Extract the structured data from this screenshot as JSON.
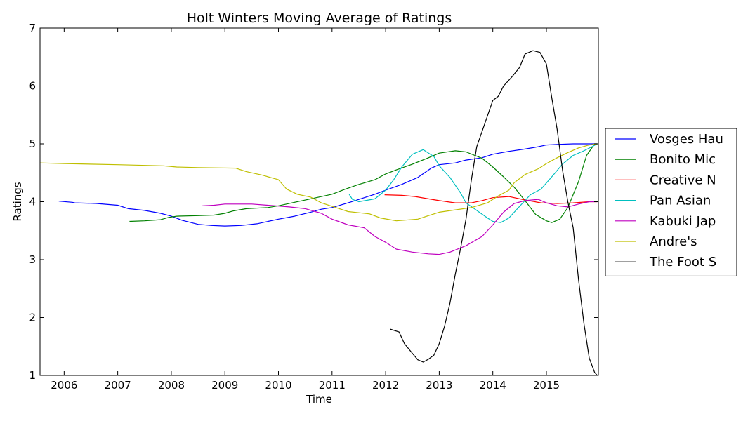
{
  "chart_data": {
    "type": "line",
    "title": "Holt Winters Moving Average of Ratings",
    "xlabel": "Time",
    "ylabel": "Ratings",
    "xlim": [
      2005.55,
      2015.97
    ],
    "ylim": [
      1,
      7
    ],
    "x_ticks": [
      2006,
      2007,
      2008,
      2009,
      2010,
      2011,
      2012,
      2013,
      2014,
      2015
    ],
    "x_tick_labels": [
      "2006",
      "2007",
      "2008",
      "2009",
      "2010",
      "2011",
      "2012",
      "2013",
      "2014",
      "2015"
    ],
    "y_ticks": [
      1,
      2,
      3,
      4,
      5,
      6,
      7
    ],
    "y_tick_labels": [
      "1",
      "2",
      "3",
      "4",
      "5",
      "6",
      "7"
    ],
    "grid": false,
    "legend_position": "right",
    "series": [
      {
        "name": "Vosges Hau",
        "color": "#0000ff",
        "points": [
          [
            2005.9,
            4.01
          ],
          [
            2006.15,
            3.99
          ],
          [
            2006.2,
            3.98
          ],
          [
            2006.6,
            3.97
          ],
          [
            2007.0,
            3.94
          ],
          [
            2007.2,
            3.88
          ],
          [
            2007.5,
            3.85
          ],
          [
            2007.8,
            3.8
          ],
          [
            2008.0,
            3.75
          ],
          [
            2008.2,
            3.68
          ],
          [
            2008.5,
            3.61
          ],
          [
            2008.75,
            3.59
          ],
          [
            2009.0,
            3.58
          ],
          [
            2009.3,
            3.59
          ],
          [
            2009.6,
            3.62
          ],
          [
            2010.0,
            3.7
          ],
          [
            2010.3,
            3.75
          ],
          [
            2010.6,
            3.82
          ],
          [
            2010.8,
            3.87
          ],
          [
            2011.0,
            3.9
          ],
          [
            2011.3,
            3.98
          ],
          [
            2011.5,
            4.04
          ],
          [
            2011.8,
            4.13
          ],
          [
            2012.0,
            4.2
          ],
          [
            2012.3,
            4.3
          ],
          [
            2012.6,
            4.42
          ],
          [
            2012.85,
            4.58
          ],
          [
            2013.0,
            4.64
          ],
          [
            2013.3,
            4.67
          ],
          [
            2013.5,
            4.72
          ],
          [
            2013.8,
            4.76
          ],
          [
            2014.0,
            4.82
          ],
          [
            2014.3,
            4.87
          ],
          [
            2014.6,
            4.91
          ],
          [
            2014.85,
            4.95
          ],
          [
            2015.0,
            4.98
          ],
          [
            2015.2,
            4.99
          ],
          [
            2015.5,
            5.0
          ],
          [
            2015.95,
            5.0
          ]
        ]
      },
      {
        "name": "Bonito Mic",
        "color": "#008000",
        "points": [
          [
            2007.22,
            3.66
          ],
          [
            2007.5,
            3.67
          ],
          [
            2007.8,
            3.69
          ],
          [
            2007.95,
            3.73
          ],
          [
            2008.1,
            3.75
          ],
          [
            2008.5,
            3.76
          ],
          [
            2008.8,
            3.77
          ],
          [
            2009.0,
            3.8
          ],
          [
            2009.15,
            3.84
          ],
          [
            2009.4,
            3.88
          ],
          [
            2009.8,
            3.9
          ],
          [
            2010.0,
            3.93
          ],
          [
            2010.3,
            3.99
          ],
          [
            2010.6,
            4.05
          ],
          [
            2011.0,
            4.13
          ],
          [
            2011.25,
            4.22
          ],
          [
            2011.5,
            4.3
          ],
          [
            2011.8,
            4.38
          ],
          [
            2012.0,
            4.48
          ],
          [
            2012.2,
            4.55
          ],
          [
            2012.5,
            4.65
          ],
          [
            2012.8,
            4.76
          ],
          [
            2013.0,
            4.84
          ],
          [
            2013.3,
            4.88
          ],
          [
            2013.5,
            4.86
          ],
          [
            2013.8,
            4.75
          ],
          [
            2014.0,
            4.6
          ],
          [
            2014.2,
            4.43
          ],
          [
            2014.4,
            4.25
          ],
          [
            2014.6,
            4.02
          ],
          [
            2014.8,
            3.78
          ],
          [
            2015.0,
            3.67
          ],
          [
            2015.1,
            3.64
          ],
          [
            2015.25,
            3.7
          ],
          [
            2015.4,
            3.9
          ],
          [
            2015.6,
            4.35
          ],
          [
            2015.75,
            4.8
          ],
          [
            2015.9,
            5.0
          ],
          [
            2015.95,
            5.0
          ]
        ]
      },
      {
        "name": "Creative N",
        "color": "#ff0000",
        "points": [
          [
            2011.98,
            4.12
          ],
          [
            2012.3,
            4.11
          ],
          [
            2012.55,
            4.09
          ],
          [
            2012.8,
            4.05
          ],
          [
            2013.0,
            4.02
          ],
          [
            2013.3,
            3.98
          ],
          [
            2013.6,
            3.98
          ],
          [
            2013.8,
            4.02
          ],
          [
            2014.0,
            4.07
          ],
          [
            2014.3,
            4.09
          ],
          [
            2014.6,
            4.03
          ],
          [
            2014.9,
            3.98
          ],
          [
            2015.2,
            3.97
          ],
          [
            2015.5,
            3.98
          ],
          [
            2015.8,
            4.0
          ],
          [
            2015.95,
            4.0
          ]
        ]
      },
      {
        "name": "Pan Asian",
        "color": "#00bfbf",
        "points": [
          [
            2011.32,
            4.13
          ],
          [
            2011.38,
            4.04
          ],
          [
            2011.5,
            4.0
          ],
          [
            2011.8,
            4.05
          ],
          [
            2012.0,
            4.2
          ],
          [
            2012.15,
            4.38
          ],
          [
            2012.3,
            4.6
          ],
          [
            2012.5,
            4.82
          ],
          [
            2012.7,
            4.9
          ],
          [
            2012.9,
            4.78
          ],
          [
            2013.0,
            4.62
          ],
          [
            2013.2,
            4.42
          ],
          [
            2013.4,
            4.15
          ],
          [
            2013.5,
            3.98
          ],
          [
            2013.7,
            3.85
          ],
          [
            2013.9,
            3.72
          ],
          [
            2014.0,
            3.66
          ],
          [
            2014.15,
            3.64
          ],
          [
            2014.3,
            3.72
          ],
          [
            2014.5,
            3.92
          ],
          [
            2014.7,
            4.12
          ],
          [
            2014.9,
            4.22
          ],
          [
            2015.1,
            4.43
          ],
          [
            2015.3,
            4.65
          ],
          [
            2015.5,
            4.8
          ],
          [
            2015.7,
            4.88
          ],
          [
            2015.85,
            4.95
          ],
          [
            2015.95,
            5.0
          ]
        ]
      },
      {
        "name": "Kabuki Jap",
        "color": "#bf00bf",
        "points": [
          [
            2008.58,
            3.93
          ],
          [
            2008.8,
            3.94
          ],
          [
            2009.0,
            3.96
          ],
          [
            2009.5,
            3.96
          ],
          [
            2009.8,
            3.94
          ],
          [
            2010.2,
            3.91
          ],
          [
            2010.5,
            3.88
          ],
          [
            2010.8,
            3.8
          ],
          [
            2011.0,
            3.7
          ],
          [
            2011.3,
            3.6
          ],
          [
            2011.6,
            3.55
          ],
          [
            2011.8,
            3.4
          ],
          [
            2012.0,
            3.3
          ],
          [
            2012.2,
            3.18
          ],
          [
            2012.5,
            3.13
          ],
          [
            2012.8,
            3.1
          ],
          [
            2013.0,
            3.09
          ],
          [
            2013.2,
            3.13
          ],
          [
            2013.5,
            3.24
          ],
          [
            2013.8,
            3.4
          ],
          [
            2014.0,
            3.6
          ],
          [
            2014.2,
            3.82
          ],
          [
            2014.4,
            3.97
          ],
          [
            2014.6,
            4.02
          ],
          [
            2014.85,
            4.04
          ],
          [
            2015.0,
            3.98
          ],
          [
            2015.2,
            3.93
          ],
          [
            2015.4,
            3.91
          ],
          [
            2015.6,
            3.96
          ],
          [
            2015.8,
            4.0
          ],
          [
            2015.95,
            4.0
          ]
        ]
      },
      {
        "name": "Andre's",
        "color": "#bfbf00",
        "points": [
          [
            2005.55,
            4.67
          ],
          [
            2006.0,
            4.66
          ],
          [
            2007.0,
            4.64
          ],
          [
            2007.85,
            4.62
          ],
          [
            2008.1,
            4.6
          ],
          [
            2008.5,
            4.59
          ],
          [
            2009.2,
            4.58
          ],
          [
            2009.4,
            4.52
          ],
          [
            2009.7,
            4.46
          ],
          [
            2010.0,
            4.38
          ],
          [
            2010.15,
            4.22
          ],
          [
            2010.35,
            4.13
          ],
          [
            2010.6,
            4.08
          ],
          [
            2010.8,
            3.98
          ],
          [
            2011.0,
            3.92
          ],
          [
            2011.3,
            3.83
          ],
          [
            2011.7,
            3.79
          ],
          [
            2011.9,
            3.72
          ],
          [
            2012.2,
            3.67
          ],
          [
            2012.6,
            3.7
          ],
          [
            2012.8,
            3.76
          ],
          [
            2013.0,
            3.82
          ],
          [
            2013.3,
            3.86
          ],
          [
            2013.6,
            3.9
          ],
          [
            2013.9,
            3.98
          ],
          [
            2014.1,
            4.1
          ],
          [
            2014.3,
            4.2
          ],
          [
            2014.4,
            4.33
          ],
          [
            2014.6,
            4.47
          ],
          [
            2014.85,
            4.57
          ],
          [
            2015.0,
            4.66
          ],
          [
            2015.2,
            4.76
          ],
          [
            2015.4,
            4.85
          ],
          [
            2015.6,
            4.93
          ],
          [
            2015.8,
            4.98
          ],
          [
            2015.95,
            5.0
          ]
        ]
      },
      {
        "name": "The Foot S",
        "color": "#000000",
        "points": [
          [
            2012.08,
            1.8
          ],
          [
            2012.25,
            1.75
          ],
          [
            2012.35,
            1.55
          ],
          [
            2012.5,
            1.38
          ],
          [
            2012.6,
            1.27
          ],
          [
            2012.7,
            1.23
          ],
          [
            2012.8,
            1.28
          ],
          [
            2012.9,
            1.35
          ],
          [
            2013.0,
            1.55
          ],
          [
            2013.1,
            1.85
          ],
          [
            2013.2,
            2.25
          ],
          [
            2013.3,
            2.75
          ],
          [
            2013.4,
            3.2
          ],
          [
            2013.5,
            3.7
          ],
          [
            2013.6,
            4.38
          ],
          [
            2013.7,
            4.95
          ],
          [
            2013.85,
            5.35
          ],
          [
            2014.0,
            5.75
          ],
          [
            2014.1,
            5.82
          ],
          [
            2014.2,
            6.0
          ],
          [
            2014.35,
            6.15
          ],
          [
            2014.5,
            6.32
          ],
          [
            2014.6,
            6.55
          ],
          [
            2014.75,
            6.61
          ],
          [
            2014.88,
            6.58
          ],
          [
            2015.0,
            6.38
          ],
          [
            2015.1,
            5.8
          ],
          [
            2015.2,
            5.25
          ],
          [
            2015.3,
            4.55
          ],
          [
            2015.4,
            4.0
          ],
          [
            2015.5,
            3.55
          ],
          [
            2015.6,
            2.65
          ],
          [
            2015.7,
            1.9
          ],
          [
            2015.8,
            1.3
          ],
          [
            2015.9,
            1.05
          ],
          [
            2015.95,
            1.0
          ]
        ]
      }
    ]
  }
}
